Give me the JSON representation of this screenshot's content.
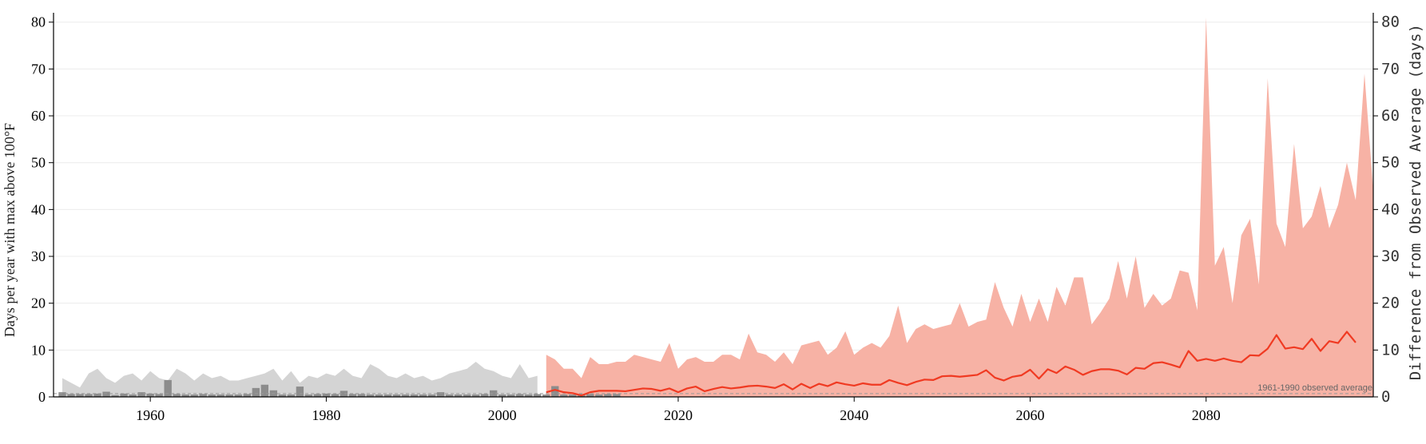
{
  "chart_data": {
    "type": "area",
    "ylabel": "Days per year with max above 100°F",
    "ylabel_right": "Difference from Observed Average (days)",
    "annotation": "1961-1990 observed average",
    "xlim": [
      1949,
      2099
    ],
    "ylim": [
      0,
      82
    ],
    "ylim_right": [
      0,
      82
    ],
    "x_ticks": [
      1960,
      1980,
      2000,
      2020,
      2040,
      2060,
      2080
    ],
    "y_ticks": [
      0,
      10,
      20,
      30,
      40,
      50,
      60,
      70,
      80
    ],
    "y_ticks_right": [
      0,
      10,
      20,
      30,
      40,
      50,
      60,
      70,
      80
    ],
    "grid": true,
    "baseline": 0.7,
    "colors": {
      "observed_area": "#d4d4d4",
      "observed_bars": "#8c8c8c",
      "projected_area": "#f7b2a5",
      "projected_median": "#f03a22",
      "baseline": "#999999"
    },
    "observed_range": {
      "start_year": 1950,
      "values": [
        4,
        3,
        2,
        5,
        6,
        4,
        3,
        4.5,
        5,
        3.5,
        5.5,
        4,
        3.5,
        6,
        5,
        3.5,
        5,
        4,
        4.5,
        3.5,
        3.5,
        4,
        4.5,
        5,
        6,
        3.5,
        5.5,
        3,
        4.5,
        4,
        5,
        4.5,
        6,
        4.5,
        4,
        7,
        6,
        4.5,
        4,
        5,
        4,
        4.5,
        3.5,
        4,
        5,
        5.5,
        6,
        7.5,
        6,
        5.5,
        4.5,
        4,
        7,
        4,
        4.5
      ]
    },
    "observed_bars": {
      "start_year": 1950,
      "values": [
        1,
        0.6,
        0.6,
        0.6,
        0.7,
        1.1,
        0.4,
        0.7,
        0.5,
        1.0,
        0.7,
        0.6,
        3.6,
        0.6,
        0.5,
        0.5,
        0.6,
        0.5,
        0.5,
        0.5,
        0.5,
        0.6,
        1.9,
        2.6,
        1.4,
        0.5,
        0.5,
        2.2,
        0.5,
        0.6,
        0.7,
        0.6,
        1.3,
        0.6,
        0.6,
        0.5,
        0.5,
        0.5,
        0.5,
        0.5,
        0.5,
        0.5,
        0.5,
        1.0,
        0.5,
        0.5,
        0.5,
        0.5,
        0.6,
        1.4,
        0.5,
        0.5,
        0.6,
        0.5,
        0.6,
        0.5,
        2.3,
        0.5,
        0.5,
        0.6,
        0.6,
        0.5,
        0.6,
        0.6
      ]
    },
    "projected_range": {
      "start_year": 2005,
      "values": [
        9,
        8,
        6,
        6,
        4,
        8.5,
        7,
        7,
        7.5,
        7.5,
        9,
        8.5,
        8,
        7.5,
        11.5,
        6,
        8,
        8.5,
        7.5,
        7.5,
        9,
        9,
        8,
        13.5,
        9.5,
        9,
        7.5,
        9.5,
        7,
        11,
        11.5,
        12,
        9,
        10.5,
        14,
        9,
        10.5,
        11.5,
        10.5,
        13,
        19.5,
        11.5,
        14.5,
        15.5,
        14.5,
        15,
        15.5,
        20,
        15,
        16,
        16.5,
        24.5,
        19,
        15,
        22,
        16,
        21,
        16,
        23.5,
        19.5,
        25.5,
        25.5,
        15.5,
        18,
        21,
        29,
        21,
        30,
        19,
        22,
        19.5,
        21,
        27,
        26.5,
        18.5,
        81,
        28,
        32,
        20,
        34.5,
        38,
        24,
        68,
        37,
        32,
        54,
        36,
        38.5,
        45,
        36,
        41,
        50,
        42,
        69,
        44
      ]
    },
    "projected_median": {
      "start_year": 2005,
      "values": [
        1,
        1.5,
        1,
        0.8,
        0.3,
        1,
        1.3,
        1.3,
        1.3,
        1.2,
        1.5,
        1.8,
        1.7,
        1.3,
        1.8,
        1,
        1.8,
        2.2,
        1.2,
        1.7,
        2.1,
        1.8,
        2,
        2.3,
        2.4,
        2.2,
        1.9,
        2.7,
        1.6,
        2.8,
        1.9,
        2.8,
        2.3,
        3.1,
        2.7,
        2.4,
        2.9,
        2.6,
        2.6,
        3.6,
        3,
        2.5,
        3.2,
        3.7,
        3.6,
        4.4,
        4.5,
        4.3,
        4.5,
        4.7,
        5.7,
        4.1,
        3.5,
        4.3,
        4.6,
        5.8,
        3.9,
        5.9,
        5.1,
        6.5,
        5.8,
        4.7,
        5.5,
        5.9,
        5.9,
        5.6,
        4.8,
        6.2,
        6,
        7.2,
        7.4,
        6.9,
        6.3,
        9.8,
        7.7,
        8.1,
        7.7,
        8.2,
        7.7,
        7.4,
        8.9,
        8.8,
        10.3,
        13.2,
        10.3,
        10.6,
        10.2,
        12.4,
        9.8,
        11.9,
        11.5,
        13.9,
        11.6
      ]
    }
  }
}
